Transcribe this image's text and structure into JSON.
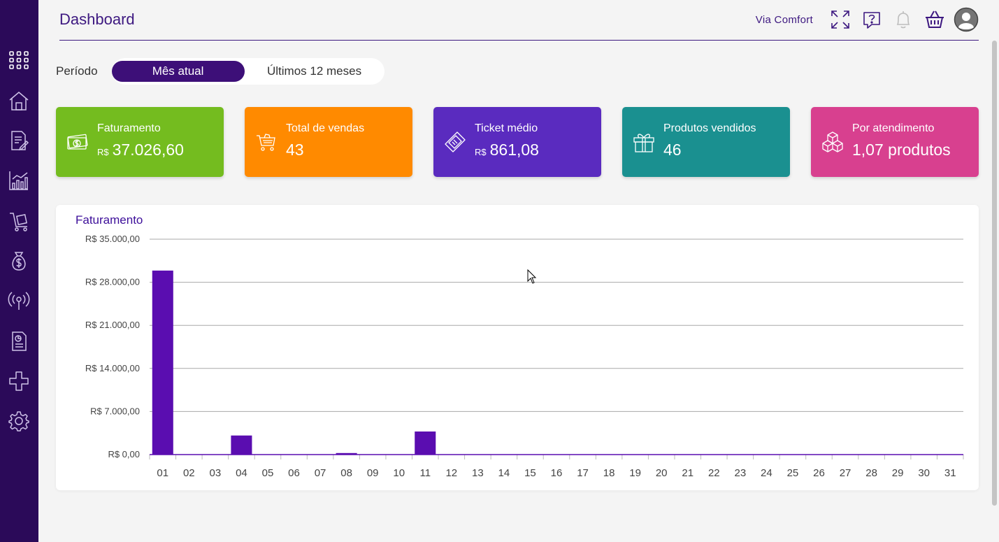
{
  "header": {
    "title": "Dashboard",
    "company": "Via Comfort",
    "icons": [
      "fullscreen-icon",
      "help-icon",
      "bell-icon",
      "basket-icon",
      "user-avatar-icon"
    ]
  },
  "sidebar": {
    "items": [
      "apps-grid-icon",
      "home-icon",
      "document-edit-icon",
      "chart-icon",
      "cart-icon",
      "money-bag-icon",
      "broadcast-icon",
      "report-icon",
      "integration-icon",
      "settings-icon"
    ]
  },
  "period": {
    "label": "Período",
    "options": [
      "Mês atual",
      "Últimos 12 meses"
    ],
    "selected": "Mês atual"
  },
  "cards": [
    {
      "label": "Faturamento",
      "currency": "R$",
      "value": "37.026,60",
      "color": "#74bc1f",
      "icon": "money-icon"
    },
    {
      "label": "Total de vendas",
      "currency": "",
      "value": "43",
      "color": "#ff8a00",
      "icon": "cart-icon"
    },
    {
      "label": "Ticket médio",
      "currency": "R$",
      "value": "861,08",
      "color": "#5a2bbf",
      "icon": "ticket-icon"
    },
    {
      "label": "Produtos vendidos",
      "currency": "",
      "value": "46",
      "color": "#1a9090",
      "icon": "gift-icon"
    },
    {
      "label": "Por atendimento",
      "currency": "",
      "value": "1,07 produtos",
      "color": "#d8408f",
      "icon": "boxes-icon"
    }
  ],
  "chart_data": {
    "type": "bar",
    "title": "Faturamento",
    "categories": [
      "01",
      "02",
      "03",
      "04",
      "05",
      "06",
      "07",
      "08",
      "09",
      "10",
      "11",
      "12",
      "13",
      "14",
      "15",
      "16",
      "17",
      "18",
      "19",
      "20",
      "21",
      "22",
      "23",
      "24",
      "25",
      "26",
      "27",
      "28",
      "29",
      "30",
      "31"
    ],
    "values": [
      29900,
      0,
      0,
      3100,
      0,
      0,
      0,
      250,
      0,
      0,
      3750,
      0,
      0,
      0,
      0,
      0,
      0,
      0,
      0,
      0,
      0,
      0,
      0,
      0,
      0,
      0,
      0,
      0,
      0,
      0,
      0
    ],
    "ylim": [
      0,
      35000
    ],
    "yticks": [
      0,
      7000,
      14000,
      21000,
      28000,
      35000
    ],
    "ytick_labels": [
      "R$ 0,00",
      "R$ 7.000,00",
      "R$ 14.000,00",
      "R$ 21.000,00",
      "R$ 28.000,00",
      "R$ 35.000,00"
    ],
    "bar_color": "#5a0db0",
    "grid": true,
    "legend": "none"
  }
}
